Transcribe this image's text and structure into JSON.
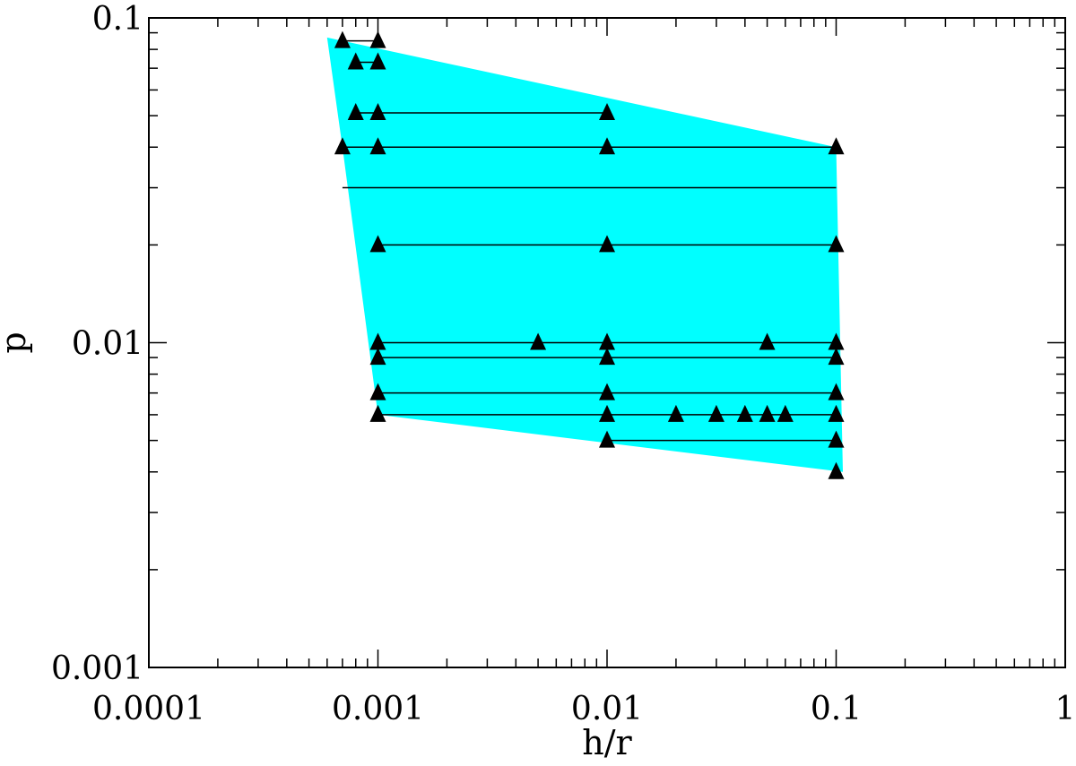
{
  "chart_data": {
    "type": "scatter",
    "xscale": "log",
    "yscale": "log",
    "xlabel": "h/r",
    "ylabel": "p",
    "xlim": [
      0.0001,
      1
    ],
    "ylim": [
      0.001,
      0.1
    ],
    "x_tick_labels": [
      {
        "value": 0.0001,
        "label": "0.0001"
      },
      {
        "value": 0.001,
        "label": "0.001"
      },
      {
        "value": 0.01,
        "label": "0.01"
      },
      {
        "value": 0.1,
        "label": "0.1"
      },
      {
        "value": 1,
        "label": "1"
      }
    ],
    "y_tick_labels": [
      {
        "value": 0.001,
        "label": "0.001"
      },
      {
        "value": 0.01,
        "label": "0.01"
      },
      {
        "value": 0.1,
        "label": "0.1"
      }
    ],
    "region": {
      "color": "#00ffff",
      "vertices": [
        [
          0.0006,
          0.087
        ],
        [
          0.1,
          0.04
        ],
        [
          0.107,
          0.004
        ],
        [
          0.001,
          0.006
        ],
        [
          0.0007,
          0.04
        ]
      ]
    },
    "segments": [
      {
        "y": 0.085,
        "x": [
          0.0007,
          0.001
        ]
      },
      {
        "y": 0.073,
        "x": [
          0.0008,
          0.001
        ]
      },
      {
        "y": 0.051,
        "x": [
          0.0008,
          0.01
        ]
      },
      {
        "y": 0.04,
        "x": [
          0.0007,
          0.1
        ]
      },
      {
        "y": 0.03,
        "x": [
          0.0007,
          0.1
        ]
      },
      {
        "y": 0.02,
        "x": [
          0.001,
          0.1
        ]
      },
      {
        "y": 0.01,
        "x": [
          0.001,
          0.1
        ]
      },
      {
        "y": 0.009,
        "x": [
          0.001,
          0.1
        ]
      },
      {
        "y": 0.007,
        "x": [
          0.001,
          0.1
        ]
      },
      {
        "y": 0.006,
        "x": [
          0.001,
          0.1
        ]
      },
      {
        "y": 0.005,
        "x": [
          0.01,
          0.1
        ]
      }
    ],
    "points": [
      [
        0.0007,
        0.085
      ],
      [
        0.001,
        0.085
      ],
      [
        0.0008,
        0.073
      ],
      [
        0.001,
        0.073
      ],
      [
        0.0008,
        0.051
      ],
      [
        0.001,
        0.051
      ],
      [
        0.01,
        0.051
      ],
      [
        0.0007,
        0.04
      ],
      [
        0.001,
        0.04
      ],
      [
        0.01,
        0.04
      ],
      [
        0.1,
        0.04
      ],
      [
        0.001,
        0.02
      ],
      [
        0.01,
        0.02
      ],
      [
        0.1,
        0.02
      ],
      [
        0.001,
        0.01
      ],
      [
        0.005,
        0.01
      ],
      [
        0.01,
        0.01
      ],
      [
        0.05,
        0.01
      ],
      [
        0.1,
        0.01
      ],
      [
        0.001,
        0.009
      ],
      [
        0.01,
        0.009
      ],
      [
        0.1,
        0.009
      ],
      [
        0.001,
        0.007
      ],
      [
        0.01,
        0.007
      ],
      [
        0.1,
        0.007
      ],
      [
        0.001,
        0.006
      ],
      [
        0.01,
        0.006
      ],
      [
        0.02,
        0.006
      ],
      [
        0.03,
        0.006
      ],
      [
        0.04,
        0.006
      ],
      [
        0.05,
        0.006
      ],
      [
        0.06,
        0.006
      ],
      [
        0.1,
        0.006
      ],
      [
        0.01,
        0.005
      ],
      [
        0.1,
        0.005
      ],
      [
        0.1,
        0.004
      ]
    ],
    "marker": "filled-triangle",
    "marker_color": "#000000",
    "line_color": "#000000",
    "grid": false
  }
}
